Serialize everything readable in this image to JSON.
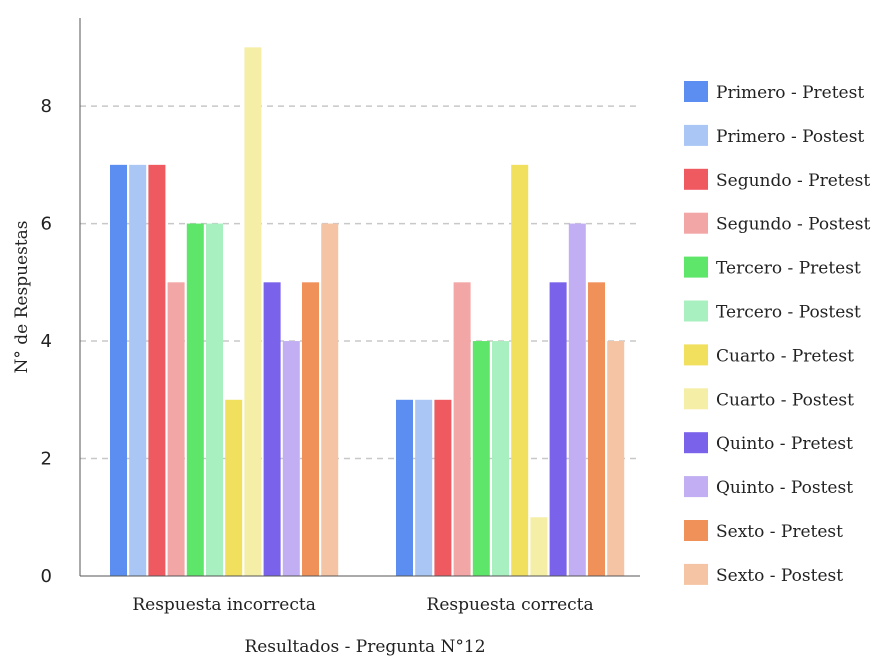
{
  "chart_data": {
    "type": "bar",
    "xlabel": "Resultados - Pregunta N°12",
    "ylabel": "N° de Respuestas",
    "ylim": [
      0,
      9.5
    ],
    "yticks": [
      "0",
      "2",
      "4",
      "6",
      "8"
    ],
    "grid": true,
    "legend_position": "right",
    "categories": [
      "Respuesta incorrecta",
      "Respuesta correcta"
    ],
    "series": [
      {
        "name": "Primero - Pretest",
        "color": "#5b8ef0",
        "values": [
          7,
          3
        ]
      },
      {
        "name": "Primero - Postest",
        "color": "#a9c6f5",
        "values": [
          7,
          3
        ]
      },
      {
        "name": "Segundo - Pretest",
        "color": "#ee5a60",
        "values": [
          7,
          3
        ]
      },
      {
        "name": "Segundo - Postest",
        "color": "#f3a6a6",
        "values": [
          5,
          5
        ]
      },
      {
        "name": "Tercero - Pretest",
        "color": "#5ee66a",
        "values": [
          6,
          4
        ]
      },
      {
        "name": "Tercero - Postest",
        "color": "#a8f0bf",
        "values": [
          6,
          4
        ]
      },
      {
        "name": "Cuarto - Pretest",
        "color": "#f0e05e",
        "values": [
          3,
          7
        ]
      },
      {
        "name": "Cuarto - Postest",
        "color": "#f5eea6",
        "values": [
          9,
          1
        ]
      },
      {
        "name": "Quinto - Pretest",
        "color": "#7a62ea",
        "values": [
          5,
          5
        ]
      },
      {
        "name": "Quinto - Postest",
        "color": "#c2aef2",
        "values": [
          4,
          6
        ]
      },
      {
        "name": "Sexto - Pretest",
        "color": "#f0915a",
        "values": [
          5,
          5
        ]
      },
      {
        "name": "Sexto - Postest",
        "color": "#f5c4a4",
        "values": [
          6,
          4
        ]
      }
    ]
  }
}
